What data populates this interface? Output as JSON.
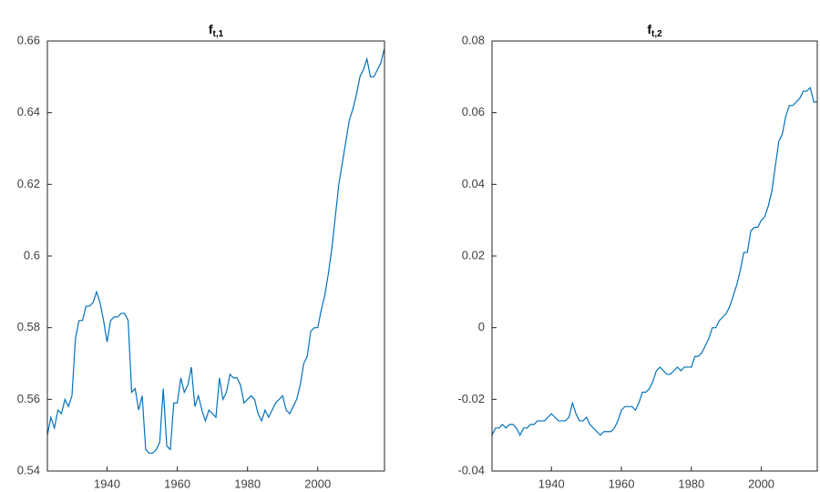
{
  "chart_data": [
    {
      "type": "line",
      "title": "f",
      "title_subscript": "t,1",
      "x": [
        1923,
        1924,
        1925,
        1926,
        1927,
        1928,
        1929,
        1930,
        1931,
        1932,
        1933,
        1934,
        1935,
        1936,
        1937,
        1938,
        1939,
        1940,
        1941,
        1942,
        1943,
        1944,
        1945,
        1946,
        1947,
        1948,
        1949,
        1950,
        1951,
        1952,
        1953,
        1954,
        1955,
        1956,
        1957,
        1958,
        1959,
        1960,
        1961,
        1962,
        1963,
        1964,
        1965,
        1966,
        1967,
        1968,
        1969,
        1970,
        1971,
        1972,
        1973,
        1974,
        1975,
        1976,
        1977,
        1978,
        1979,
        1980,
        1981,
        1982,
        1983,
        1984,
        1985,
        1986,
        1987,
        1988,
        1989,
        1990,
        1991,
        1992,
        1993,
        1994,
        1995,
        1996,
        1997,
        1998,
        1999,
        2000,
        2001,
        2002,
        2003,
        2004,
        2005,
        2006,
        2007,
        2008,
        2009,
        2010,
        2011,
        2012,
        2013,
        2014,
        2015,
        2016,
        2017,
        2018,
        2019
      ],
      "series": [
        {
          "color": "#0072bd",
          "values": [
            0.55,
            0.555,
            0.552,
            0.557,
            0.556,
            0.56,
            0.558,
            0.561,
            0.577,
            0.582,
            0.582,
            0.586,
            0.586,
            0.587,
            0.59,
            0.587,
            0.582,
            0.576,
            0.582,
            0.583,
            0.583,
            0.584,
            0.584,
            0.582,
            0.562,
            0.563,
            0.557,
            0.561,
            0.546,
            0.545,
            0.545,
            0.546,
            0.548,
            0.563,
            0.547,
            0.546,
            0.559,
            0.559,
            0.566,
            0.562,
            0.564,
            0.569,
            0.558,
            0.561,
            0.557,
            0.554,
            0.557,
            0.556,
            0.555,
            0.566,
            0.56,
            0.562,
            0.567,
            0.566,
            0.566,
            0.564,
            0.559,
            0.56,
            0.561,
            0.56,
            0.556,
            0.554,
            0.557,
            0.555,
            0.557,
            0.559,
            0.56,
            0.561,
            0.557,
            0.556,
            0.558,
            0.56,
            0.564,
            0.57,
            0.572,
            0.579,
            0.58,
            0.58,
            0.585,
            0.589,
            0.595,
            0.602,
            0.611,
            0.62,
            0.626,
            0.632,
            0.638,
            0.641,
            0.645,
            0.65,
            0.652,
            0.655,
            0.65,
            0.65,
            0.652,
            0.654,
            0.658
          ]
        }
      ],
      "xlim": [
        1923,
        2019
      ],
      "xticks": [
        1940,
        1960,
        1980,
        2000
      ],
      "ylim": [
        0.54,
        0.66
      ],
      "yticks": [
        0.54,
        0.56,
        0.58,
        0.6,
        0.62,
        0.64,
        0.66
      ]
    },
    {
      "type": "line",
      "title": "f",
      "title_subscript": "t,2",
      "x": [
        1923,
        1924,
        1925,
        1926,
        1927,
        1928,
        1929,
        1930,
        1931,
        1932,
        1933,
        1934,
        1935,
        1936,
        1937,
        1938,
        1939,
        1940,
        1941,
        1942,
        1943,
        1944,
        1945,
        1946,
        1947,
        1948,
        1949,
        1950,
        1951,
        1952,
        1953,
        1954,
        1955,
        1956,
        1957,
        1958,
        1959,
        1960,
        1961,
        1962,
        1963,
        1964,
        1965,
        1966,
        1967,
        1968,
        1969,
        1970,
        1971,
        1972,
        1973,
        1974,
        1975,
        1976,
        1977,
        1978,
        1979,
        1980,
        1981,
        1982,
        1983,
        1984,
        1985,
        1986,
        1987,
        1988,
        1989,
        1990,
        1991,
        1992,
        1993,
        1994,
        1995,
        1996,
        1997,
        1998,
        1999,
        2000,
        2001,
        2002,
        2003,
        2004,
        2005,
        2006,
        2007,
        2008,
        2009,
        2010,
        2011,
        2012,
        2013,
        2014,
        2015,
        2016
      ],
      "series": [
        {
          "color": "#0072bd",
          "values": [
            -0.03,
            -0.028,
            -0.028,
            -0.027,
            -0.028,
            -0.027,
            -0.027,
            -0.028,
            -0.03,
            -0.028,
            -0.028,
            -0.027,
            -0.027,
            -0.026,
            -0.026,
            -0.026,
            -0.025,
            -0.024,
            -0.025,
            -0.026,
            -0.026,
            -0.026,
            -0.025,
            -0.021,
            -0.024,
            -0.026,
            -0.026,
            -0.025,
            -0.027,
            -0.028,
            -0.029,
            -0.03,
            -0.029,
            -0.029,
            -0.029,
            -0.028,
            -0.026,
            -0.023,
            -0.022,
            -0.022,
            -0.022,
            -0.023,
            -0.021,
            -0.018,
            -0.018,
            -0.017,
            -0.015,
            -0.012,
            -0.011,
            -0.012,
            -0.013,
            -0.013,
            -0.012,
            -0.011,
            -0.012,
            -0.011,
            -0.011,
            -0.011,
            -0.008,
            -0.008,
            -0.007,
            -0.005,
            -0.003,
            0.0,
            0.0,
            0.002,
            0.003,
            0.004,
            0.006,
            0.009,
            0.012,
            0.016,
            0.021,
            0.021,
            0.027,
            0.028,
            0.028,
            0.03,
            0.031,
            0.034,
            0.038,
            0.045,
            0.052,
            0.054,
            0.059,
            0.062,
            0.062,
            0.063,
            0.064,
            0.066,
            0.066,
            0.067,
            0.063,
            0.063
          ]
        }
      ],
      "xlim": [
        1923,
        2016
      ],
      "xticks": [
        1940,
        1960,
        1980,
        2000
      ],
      "ylim": [
        -0.04,
        0.08
      ],
      "yticks": [
        -0.04,
        -0.02,
        0,
        0.02,
        0.04,
        0.06,
        0.08
      ]
    }
  ]
}
